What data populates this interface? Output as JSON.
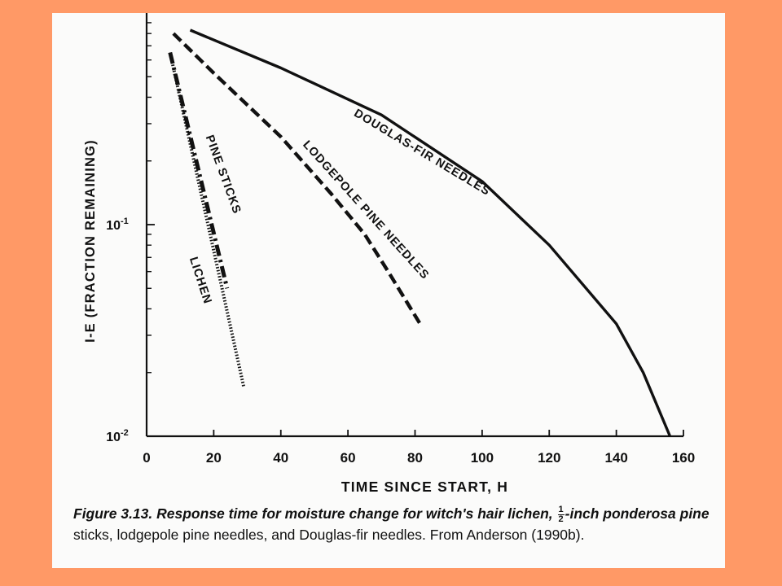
{
  "colors": {
    "background": "#FF9966",
    "paper": "#FBFBFA",
    "ink": "#111111"
  },
  "chart_data": {
    "type": "line",
    "xlabel": "TIME SINCE START, H",
    "ylabel": "I-E (FRACTION REMAINING)",
    "xlim": [
      0,
      160
    ],
    "ylim": [
      0.01,
      1
    ],
    "y_scale": "log",
    "x_ticks": [
      0,
      20,
      40,
      60,
      80,
      100,
      120,
      140,
      160
    ],
    "y_ticks": [
      {
        "value": 0.1,
        "base": "10",
        "exp": "-1"
      },
      {
        "value": 0.01,
        "base": "10",
        "exp": "-2"
      }
    ],
    "series": [
      {
        "name": "LICHEN",
        "style": "dotted",
        "points": [
          [
            7,
            0.65
          ],
          [
            29,
            0.017
          ]
        ]
      },
      {
        "name": "PINE STICKS",
        "style": "dash-dot",
        "points": [
          [
            7,
            0.65
          ],
          [
            24,
            0.05
          ]
        ]
      },
      {
        "name": "LODGEPOLE PINE NEEDLES",
        "style": "dashed",
        "points": [
          [
            8,
            0.8
          ],
          [
            20,
            0.52
          ],
          [
            40,
            0.26
          ],
          [
            55,
            0.14
          ],
          [
            65,
            0.09
          ],
          [
            72,
            0.06
          ],
          [
            82,
            0.033
          ]
        ]
      },
      {
        "name": "DOUGLAS-FIR NEEDLES",
        "style": "solid",
        "points": [
          [
            13,
            0.83
          ],
          [
            40,
            0.55
          ],
          [
            70,
            0.33
          ],
          [
            100,
            0.16
          ],
          [
            120,
            0.08
          ],
          [
            140,
            0.034
          ],
          [
            148,
            0.02
          ],
          [
            156,
            0.01
          ]
        ]
      }
    ]
  },
  "caption": {
    "figure_label": "Figure 3.13.",
    "text_part1": "Response time for moisture change for witch's hair lichen,",
    "frac_num": "1",
    "frac_den": "2",
    "text_part2": "-inch ponderosa pine",
    "line2": "sticks, lodgepole pine needles, and Douglas-fir needles. From Anderson (1990b)."
  }
}
